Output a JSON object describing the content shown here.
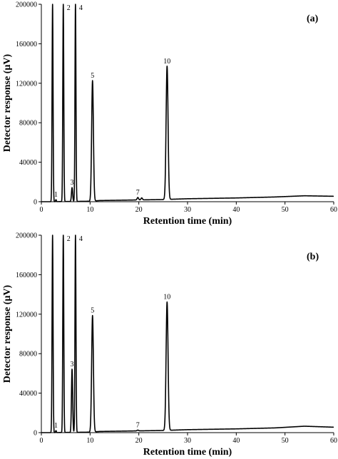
{
  "chart_data": [
    {
      "type": "line",
      "panel_label": "(a)",
      "xlabel": "Retention time (min)",
      "ylabel": "Detector response (µV)",
      "xlim": [
        0,
        60
      ],
      "ylim": [
        0,
        200000
      ],
      "xticks": [
        0,
        10,
        20,
        30,
        40,
        50,
        60
      ],
      "yticks": [
        0,
        40000,
        80000,
        120000,
        160000,
        200000
      ],
      "grid": false,
      "baseline": [
        [
          0,
          0
        ],
        [
          2,
          0
        ],
        [
          10,
          500
        ],
        [
          12,
          1200
        ],
        [
          20,
          1800
        ],
        [
          25,
          2200
        ],
        [
          30,
          3000
        ],
        [
          40,
          3800
        ],
        [
          48,
          4800
        ],
        [
          54,
          6000
        ],
        [
          60,
          5500
        ]
      ],
      "peaks": [
        {
          "label": "1",
          "t": 3.0,
          "height": 2000,
          "width": 0.08
        },
        {
          "label": "",
          "t": 2.3,
          "height": 200000,
          "width": 0.1
        },
        {
          "label": "2",
          "t": 4.5,
          "height": 200000,
          "width": 0.1
        },
        {
          "label": "3",
          "t": 6.3,
          "height": 14000,
          "width": 0.12
        },
        {
          "label": "4",
          "t": 7.0,
          "height": 200000,
          "width": 0.1
        },
        {
          "label": "5",
          "t": 10.5,
          "height": 122000,
          "width": 0.18
        },
        {
          "label": "7",
          "t": 19.8,
          "height": 2500,
          "width": 0.15
        },
        {
          "label": "",
          "t": 20.6,
          "height": 2000,
          "width": 0.15
        },
        {
          "label": "10",
          "t": 25.8,
          "height": 135000,
          "width": 0.2
        }
      ]
    },
    {
      "type": "line",
      "panel_label": "(b)",
      "xlabel": "Retention time (min)",
      "ylabel": "Detector response (µV)",
      "xlim": [
        0,
        60
      ],
      "ylim": [
        0,
        200000
      ],
      "xticks": [
        0,
        10,
        20,
        30,
        40,
        50,
        60
      ],
      "yticks": [
        0,
        40000,
        80000,
        120000,
        160000,
        200000
      ],
      "grid": false,
      "baseline": [
        [
          0,
          0
        ],
        [
          2,
          0
        ],
        [
          10,
          500
        ],
        [
          12,
          1200
        ],
        [
          20,
          1800
        ],
        [
          25,
          2200
        ],
        [
          30,
          3000
        ],
        [
          40,
          3800
        ],
        [
          48,
          4800
        ],
        [
          54,
          6500
        ],
        [
          60,
          5500
        ]
      ],
      "peaks": [
        {
          "label": "1",
          "t": 3.0,
          "height": 2000,
          "width": 0.08
        },
        {
          "label": "",
          "t": 2.3,
          "height": 200000,
          "width": 0.1
        },
        {
          "label": "2",
          "t": 4.5,
          "height": 200000,
          "width": 0.1
        },
        {
          "label": "3",
          "t": 6.3,
          "height": 64000,
          "width": 0.12
        },
        {
          "label": "4",
          "t": 7.0,
          "height": 200000,
          "width": 0.1
        },
        {
          "label": "5",
          "t": 10.5,
          "height": 118000,
          "width": 0.18
        },
        {
          "label": "7",
          "t": 19.8,
          "height": 800,
          "width": 0.15
        },
        {
          "label": "10",
          "t": 25.8,
          "height": 130000,
          "width": 0.2
        }
      ]
    }
  ],
  "colors": {
    "line": "#000000",
    "axis": "#000000"
  }
}
